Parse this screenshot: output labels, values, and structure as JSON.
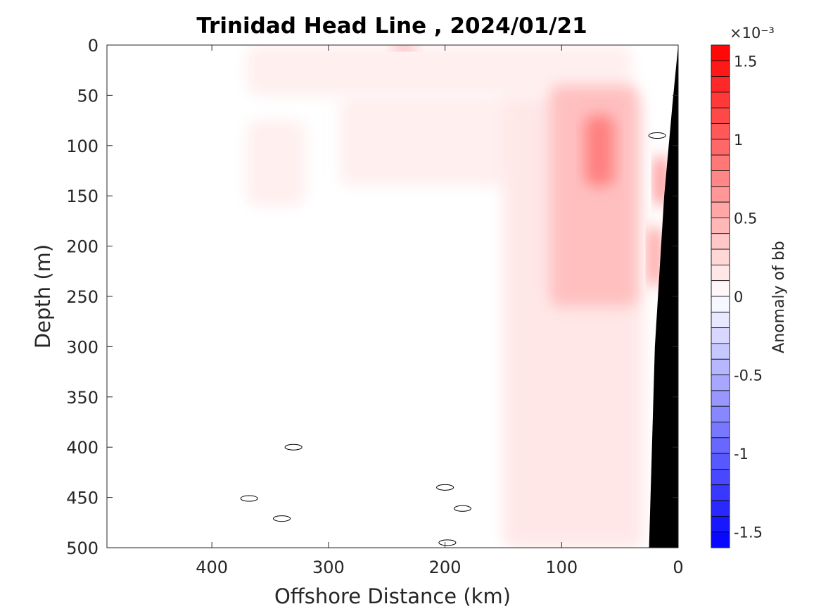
{
  "chart_data": {
    "type": "heatmap",
    "title": "Trinidad Head Line , 2024/01/21",
    "xlabel": "Offshore Distance (km)",
    "ylabel": "Depth (m)",
    "xlim": [
      490,
      0
    ],
    "ylim": [
      0,
      500
    ],
    "x_reversed": true,
    "y_reversed": true,
    "x_ticks": [
      400,
      300,
      200,
      100,
      0
    ],
    "x_tick_labels": [
      "400",
      "300",
      "200",
      "100",
      "0"
    ],
    "y_ticks": [
      0,
      50,
      100,
      150,
      200,
      250,
      300,
      350,
      400,
      450,
      500
    ],
    "y_tick_labels": [
      "0",
      "50",
      "100",
      "150",
      "200",
      "250",
      "300",
      "350",
      "400",
      "450",
      "500"
    ],
    "grid": false,
    "colorbar": {
      "label": "Anomaly of bb",
      "exponent_label": "×10⁻³",
      "range": [
        -1.6,
        1.6
      ],
      "ticks": [
        1.5,
        1,
        0.5,
        0,
        -0.5,
        -1,
        -1.5
      ],
      "tick_labels": [
        "1.5",
        "1",
        "0.5",
        "0",
        "-0.5",
        "-1",
        "-1.5"
      ],
      "levels": 32,
      "colors": {
        "positive": "#ff0000",
        "zero": "#ffffff",
        "negative": "#0000ff"
      }
    },
    "fields": [
      {
        "name": "near-surface band",
        "distance": [
          370,
          40
        ],
        "depth": [
          0,
          50
        ],
        "value": 0.1
      },
      {
        "name": "offshore patch",
        "distance": [
          370,
          320
        ],
        "depth": [
          75,
          160
        ],
        "value": 0.1
      },
      {
        "name": "mid-shelf tongue",
        "distance": [
          290,
          140
        ],
        "depth": [
          50,
          140
        ],
        "value": 0.1
      },
      {
        "name": "slope band",
        "distance": [
          150,
          30
        ],
        "depth": [
          50,
          500
        ],
        "value": 0.15
      },
      {
        "name": "slope core",
        "distance": [
          110,
          35
        ],
        "depth": [
          40,
          260
        ],
        "value": 0.4
      },
      {
        "name": "mid-water core",
        "distance": [
          80,
          55
        ],
        "depth": [
          70,
          140
        ],
        "value": 0.8
      },
      {
        "name": "surface core",
        "distance": [
          245,
          225
        ],
        "depth": [
          0,
          5
        ],
        "value": 1.0
      },
      {
        "name": "nearshore core upper",
        "distance": [
          20,
          10
        ],
        "depth": [
          110,
          160
        ],
        "value": 0.8
      },
      {
        "name": "nearshore core lower",
        "distance": [
          25,
          15
        ],
        "depth": [
          180,
          240
        ],
        "value": 0.7
      }
    ],
    "zero_contours": [
      {
        "distance": 330,
        "depth": 400
      },
      {
        "distance": 368,
        "depth": 451
      },
      {
        "distance": 340,
        "depth": 471
      },
      {
        "distance": 200,
        "depth": 440
      },
      {
        "distance": 185,
        "depth": 461
      },
      {
        "distance": 198,
        "depth": 495
      },
      {
        "distance": 18,
        "depth": 90
      }
    ],
    "bathymetry": {
      "color": "#000000",
      "distance": [
        0,
        0,
        25,
        20,
        12,
        5
      ],
      "depth": [
        0,
        500,
        500,
        300,
        150,
        60
      ]
    }
  }
}
